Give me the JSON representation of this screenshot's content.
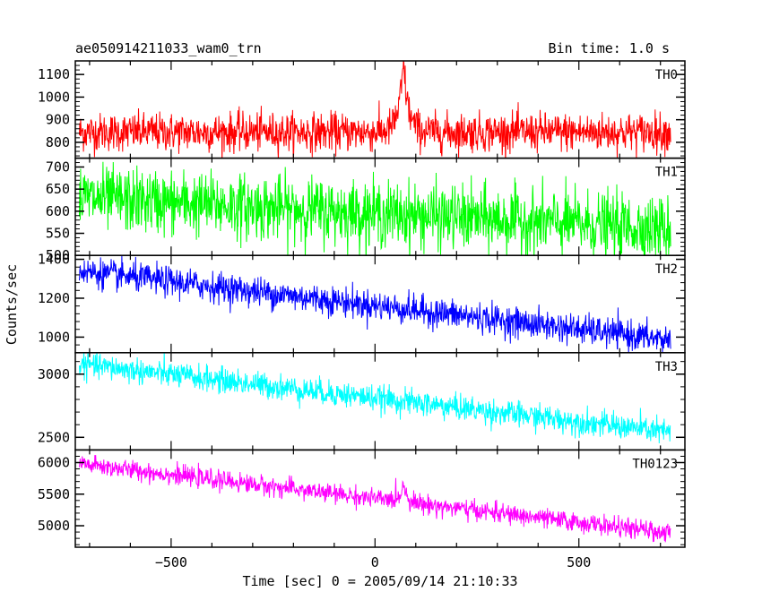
{
  "chart_data": {
    "type": "line",
    "title": "ae050914211033_wam0_trn",
    "bin_time_label": "Bin time: 1.0 s",
    "xlabel": "Time [sec] 0 = 2005/09/14 21:10:33",
    "ylabel": "Counts/sec",
    "xlim": [
      -735,
      760
    ],
    "x_range": [
      -725,
      725
    ],
    "x_ticks": [
      -500,
      0,
      500
    ],
    "x_tick_labels": [
      "−500",
      "0",
      "500"
    ],
    "burst_time": 70,
    "grid": false,
    "series": [
      {
        "name": "TH0",
        "color": "#ff0000",
        "ylim": [
          730,
          1160
        ],
        "y_ticks": [
          800,
          900,
          1000,
          1100
        ],
        "y_tick_labels": [
          "800",
          "900",
          "1000",
          "1100"
        ],
        "start_level": 845,
        "end_level": 845,
        "noise": 42,
        "peak": 300,
        "peak_width": 12
      },
      {
        "name": "TH1",
        "color": "#00ff00",
        "ylim": [
          500,
          720
        ],
        "y_ticks": [
          500,
          550,
          600,
          650,
          700
        ],
        "y_tick_labels": [
          "500",
          "550",
          "600",
          "650",
          "700"
        ],
        "start_level": 630,
        "end_level": 560,
        "noise": 36,
        "peak": 0,
        "peak_width": 12
      },
      {
        "name": "TH2",
        "color": "#0000ff",
        "ylim": [
          920,
          1420
        ],
        "y_ticks": [
          1000,
          1200,
          1400
        ],
        "y_tick_labels": [
          "1000",
          "1200",
          "1400"
        ],
        "start_level": 1340,
        "end_level": 985,
        "noise": 38,
        "peak": 0,
        "peak_width": 12
      },
      {
        "name": "TH3",
        "color": "#00ffff",
        "ylim": [
          2400,
          3170
        ],
        "y_ticks": [
          2500,
          3000
        ],
        "y_tick_labels": [
          "2500",
          "3000"
        ],
        "start_level": 3080,
        "end_level": 2540,
        "noise": 50,
        "peak": 0,
        "peak_width": 12
      },
      {
        "name": "TH0123",
        "color": "#ff00ff",
        "ylim": [
          4660,
          6200
        ],
        "y_ticks": [
          5000,
          5500,
          6000
        ],
        "y_tick_labels": [
          "5000",
          "5500",
          "6000"
        ],
        "start_level": 5980,
        "end_level": 4880,
        "noise": 75,
        "peak": 280,
        "peak_width": 10
      }
    ]
  }
}
